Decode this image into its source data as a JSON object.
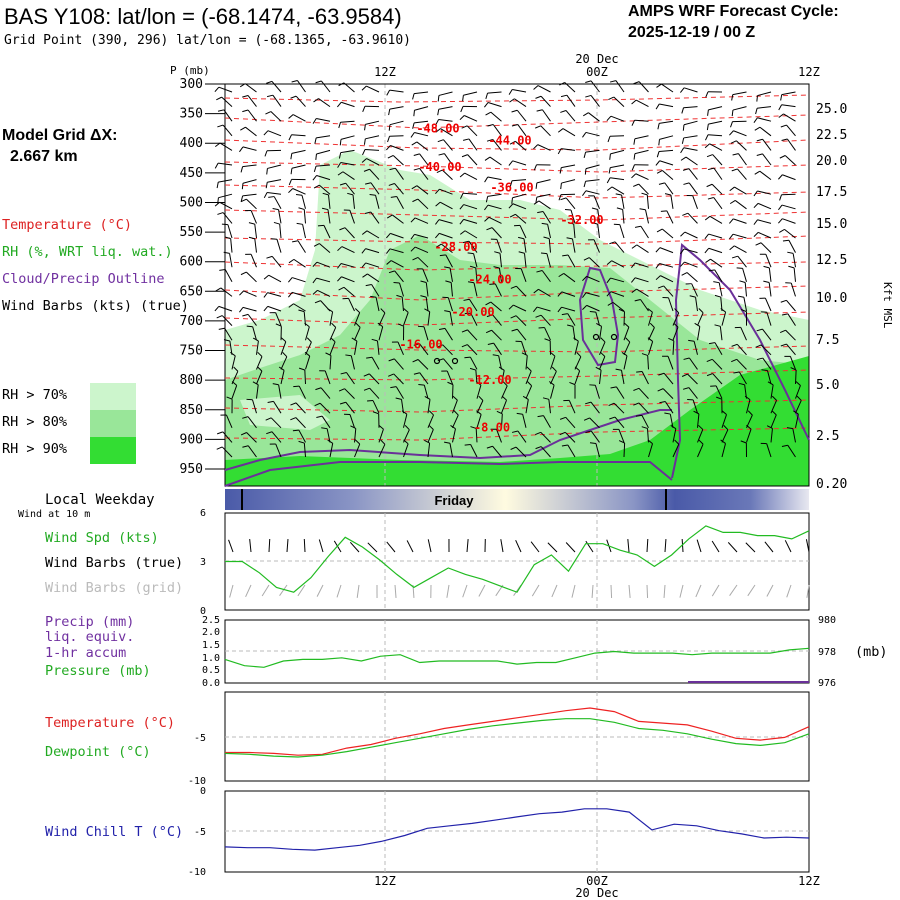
{
  "header": {
    "title": "BAS Y108:  lat/lon = (-68.1474, -63.9584)",
    "grid_point": "Grid Point (390, 296) lat/lon = (-68.1365, -63.9610)",
    "cycle_label": "AMPS WRF Forecast Cycle:",
    "cycle_value": "2025-12-19 / 00  Z"
  },
  "model_grid": {
    "label": "Model Grid ΔX:",
    "value": "2.667 km"
  },
  "legend": {
    "temperature": "Temperature (°C)",
    "rh": "RH (%, WRT liq. wat.)",
    "cloud": "Cloud/Precip Outline",
    "barbs": "Wind Barbs (kts) (true)",
    "rh70": "RH > 70%",
    "rh80": "RH > 80%",
    "rh90": "RH > 90%",
    "rh70_color": "#ccf5cc",
    "rh80_color": "#99e699",
    "rh90_color": "#33dd33"
  },
  "weekday": {
    "label": "Local Weekday",
    "day": "Friday",
    "wind_note": "Wind at 10 m"
  },
  "panel_labels": {
    "wind_spd": "Wind Spd (kts)",
    "wind_barbs_true": "Wind Barbs (true)",
    "wind_barbs_grid": "Wind Barbs (grid)",
    "precip": "Precip (mm)",
    "liq": "liq. equiv.",
    "accum": "1-hr accum",
    "pressure": "Pressure (mb)",
    "pressure_unit": "(mb)",
    "temperature": "Temperature (°C)",
    "dewpoint": "Dewpoint (°C)",
    "windchill": "Wind Chill T (°C)"
  },
  "chart_data": {
    "type": "line",
    "time_axis": {
      "top_ticks": [
        "12Z",
        "00Z",
        "12Z"
      ],
      "bottom_ticks": [
        "12Z",
        "00Z",
        "12Z"
      ],
      "date_label": "20 Dec"
    },
    "cross_section": {
      "ylabel": "P (mb)",
      "right_label": "Kft MSL",
      "pressure_levels": [
        "300",
        "350",
        "400",
        "450",
        "500",
        "550",
        "600",
        "650",
        "700",
        "750",
        "800",
        "850",
        "900",
        "950"
      ],
      "height_ticks": [
        "25.0",
        "22.5",
        "20.0",
        "17.5",
        "15.0",
        "12.5",
        "10.0",
        "7.5",
        "5.0",
        "2.5",
        "0.20"
      ],
      "temperature_labels": [
        {
          "text": "-48.00",
          "p": 375
        },
        {
          "text": "-44.00",
          "p": 395
        },
        {
          "text": "-40.00",
          "p": 440
        },
        {
          "text": "-36.00",
          "p": 475
        },
        {
          "text": "-32.00",
          "p": 530
        },
        {
          "text": "-28.00",
          "p": 575
        },
        {
          "text": "-24.00",
          "p": 630
        },
        {
          "text": "-20.00",
          "p": 685
        },
        {
          "text": "-16.00",
          "p": 740
        },
        {
          "text": "-12.00",
          "p": 800
        },
        {
          "text": "-8.00",
          "p": 880
        }
      ]
    },
    "wind_speed": {
      "ylim": [
        0,
        6
      ],
      "yticks": [
        "6",
        "3",
        "0"
      ],
      "values": [
        3,
        3,
        2.3,
        1.4,
        1.1,
        2.0,
        3.3,
        4.5,
        3.9,
        3.1,
        2.2,
        1.4,
        2.0,
        2.6,
        2.2,
        1.9,
        1.5,
        1.1,
        2.8,
        3.4,
        2.4,
        4.1,
        4.1,
        3.7,
        3.4,
        2.7,
        3.4,
        4.4,
        5.2,
        4.8,
        4.8,
        4.6,
        4.6,
        4.4,
        4.9
      ]
    },
    "precip": {
      "ylim": [
        0,
        2.5
      ],
      "yticks": [
        "2.5",
        "2.0",
        "1.5",
        "1.0",
        "0.5",
        "0.0"
      ]
    },
    "pressure": {
      "ylim": [
        976,
        980
      ],
      "yticks": [
        "980",
        "978",
        "976"
      ],
      "values": [
        977.5,
        977.1,
        977.0,
        977.4,
        977.5,
        977.5,
        977.6,
        977.4,
        977.7,
        977.8,
        977.3,
        977.4,
        977.4,
        977.4,
        977.4,
        977.2,
        977.3,
        977.3,
        977.6,
        977.9,
        978.0,
        977.9,
        977.9,
        977.9,
        977.8,
        977.9,
        977.9,
        977.9,
        977.9,
        978.1,
        978.2
      ]
    },
    "temperature": {
      "ylim": [
        -10,
        0
      ],
      "yticks": [
        "-5",
        "-10"
      ],
      "values": [
        -6.8,
        -6.8,
        -6.9,
        -7.1,
        -7.0,
        -6.3,
        -5.9,
        -5.2,
        -4.7,
        -4.1,
        -3.7,
        -3.3,
        -2.9,
        -2.5,
        -2.1,
        -1.8,
        -2.2,
        -3.3,
        -3.5,
        -3.7,
        -4.4,
        -5.2,
        -5.4,
        -5.1,
        -3.9
      ]
    },
    "dewpoint": {
      "values": [
        -6.9,
        -7.0,
        -7.2,
        -7.3,
        -7.1,
        -6.7,
        -6.2,
        -5.7,
        -5.2,
        -4.7,
        -4.2,
        -3.8,
        -3.5,
        -3.2,
        -3.0,
        -3.0,
        -3.4,
        -4.1,
        -4.3,
        -4.7,
        -5.3,
        -5.8,
        -6.0,
        -5.7,
        -4.7
      ]
    },
    "wind_chill": {
      "ylim": [
        -10,
        0
      ],
      "yticks": [
        "0",
        "-5",
        "-10"
      ],
      "values": [
        -6.9,
        -7.0,
        -7.0,
        -7.2,
        -7.3,
        -7.0,
        -6.7,
        -6.2,
        -5.5,
        -4.6,
        -4.3,
        -4.0,
        -3.6,
        -3.2,
        -2.8,
        -2.6,
        -2.2,
        -2.2,
        -2.6,
        -4.8,
        -4.1,
        -4.3,
        -4.9,
        -5.3,
        -5.8,
        -5.7,
        -5.8
      ]
    }
  }
}
